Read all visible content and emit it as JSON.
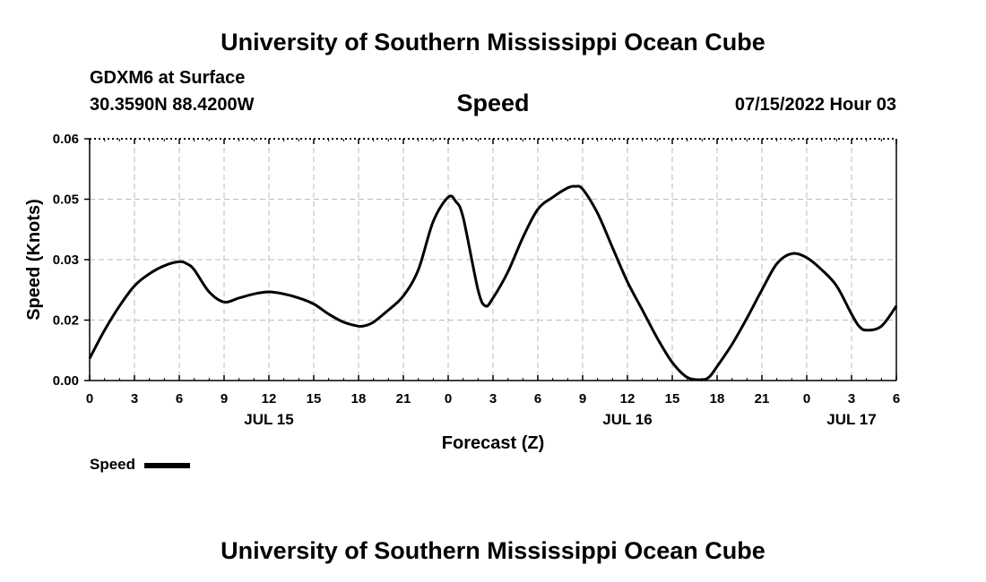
{
  "header": {
    "title_top": "University of Southern Mississippi Ocean Cube",
    "station": "GDXM6 at Surface",
    "coords": "30.3590N  88.4200W",
    "subtitle": "Speed",
    "datetime": "07/15/2022 Hour 03",
    "title_bottom": "University of Southern Mississippi Ocean Cube"
  },
  "legend": {
    "label": "Speed",
    "color": "#000000"
  },
  "chart_data": {
    "type": "line",
    "title": "Speed",
    "xlabel": "Forecast (Z)",
    "ylabel": "Speed (Knots)",
    "xlim": [
      0,
      54
    ],
    "ylim": [
      0.0,
      0.06
    ],
    "grid": true,
    "legend_position": "bottom-left",
    "x_ticks": [
      0,
      3,
      6,
      9,
      12,
      15,
      18,
      21,
      24,
      27,
      30,
      33,
      36,
      39,
      42,
      45,
      48,
      51,
      54
    ],
    "x_tick_labels": [
      "0",
      "3",
      "6",
      "9",
      "12",
      "15",
      "18",
      "21",
      "0",
      "3",
      "6",
      "9",
      "12",
      "15",
      "18",
      "21",
      "0",
      "3",
      "6"
    ],
    "date_labels": [
      {
        "x": 12,
        "label": "JUL 15"
      },
      {
        "x": 36,
        "label": "JUL 16"
      },
      {
        "x": 51,
        "label": "JUL 17"
      }
    ],
    "y_ticks": [
      0.0,
      0.015,
      0.03,
      0.045,
      0.06
    ],
    "y_tick_labels": [
      "0.00",
      "0.02",
      "0.03",
      "0.05",
      "0.06"
    ],
    "series": [
      {
        "name": "Speed",
        "color": "#000000",
        "x": [
          0,
          1,
          2,
          3,
          4,
          5,
          6,
          6.5,
          7,
          8,
          9,
          10,
          11,
          12,
          13,
          14,
          15,
          16,
          17,
          18,
          18.5,
          19,
          20,
          21,
          22,
          23,
          24,
          24.5,
          25,
          26,
          26.5,
          27,
          28,
          29,
          30,
          31,
          32,
          32.5,
          33,
          34,
          35,
          36,
          37,
          38,
          39,
          40,
          41,
          41.5,
          42,
          43,
          44,
          45,
          46,
          47,
          48,
          49,
          50,
          51,
          51.5,
          52,
          53,
          54
        ],
        "values": [
          0.0055,
          0.0125,
          0.0185,
          0.0235,
          0.0265,
          0.0285,
          0.0295,
          0.029,
          0.0275,
          0.022,
          0.0195,
          0.0205,
          0.0215,
          0.022,
          0.0215,
          0.0205,
          0.019,
          0.0165,
          0.0145,
          0.0135,
          0.0137,
          0.0145,
          0.0175,
          0.021,
          0.0275,
          0.0395,
          0.0455,
          0.0445,
          0.0405,
          0.0225,
          0.0185,
          0.0205,
          0.027,
          0.0355,
          0.0425,
          0.0455,
          0.0478,
          0.0482,
          0.0475,
          0.0415,
          0.033,
          0.0245,
          0.0175,
          0.0105,
          0.0045,
          0.0008,
          0.0002,
          0.001,
          0.0035,
          0.009,
          0.0155,
          0.0225,
          0.029,
          0.0315,
          0.0305,
          0.0275,
          0.0235,
          0.0165,
          0.0135,
          0.0125,
          0.0135,
          0.0185
        ]
      }
    ]
  }
}
